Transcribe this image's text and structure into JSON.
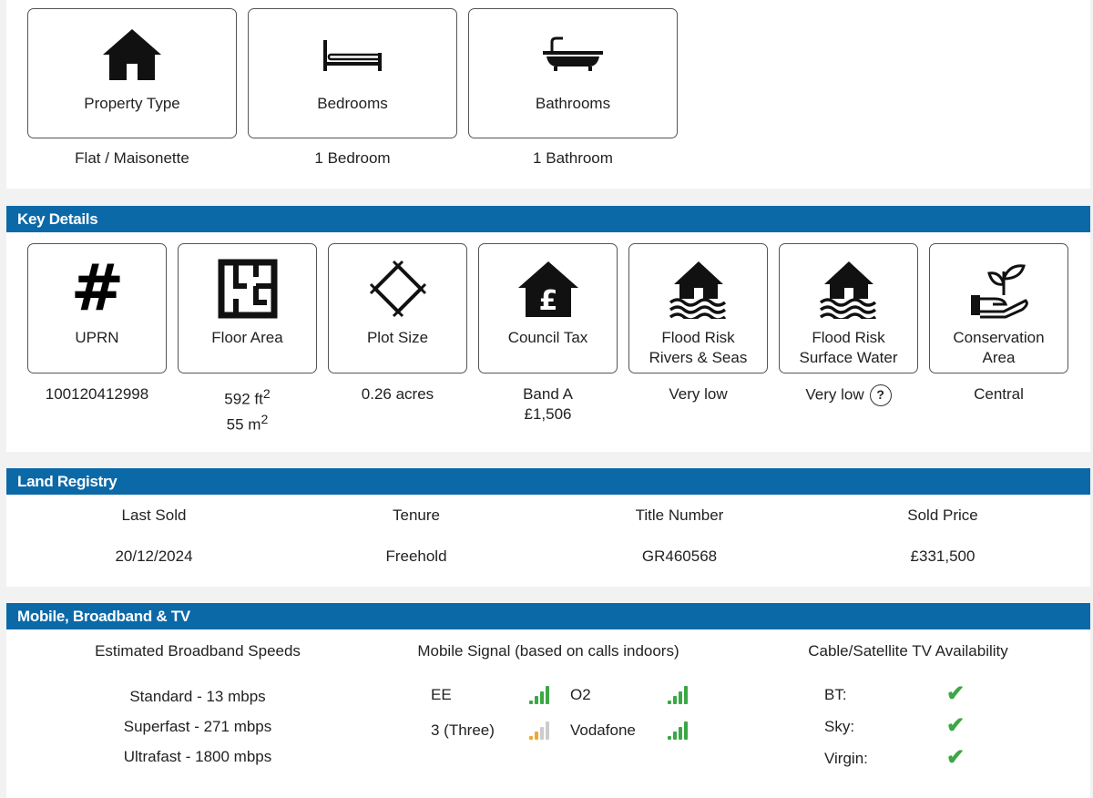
{
  "summary": [
    {
      "label": "Property Type",
      "value": "Flat / Maisonette",
      "icon": "house-icon"
    },
    {
      "label": "Bedrooms",
      "value": "1 Bedroom",
      "icon": "bed-icon"
    },
    {
      "label": "Bathrooms",
      "value": "1 Bathroom",
      "icon": "bath-icon"
    }
  ],
  "key_details": {
    "title": "Key Details",
    "items": [
      {
        "label1": "UPRN",
        "label2": "",
        "value1": "100120412998",
        "value2": "",
        "icon": "hash-icon"
      },
      {
        "label1": "Floor Area",
        "label2": "",
        "value1": "592 ft",
        "sup1": "2",
        "value2": "55 m",
        "sup2": "2",
        "icon": "floorplan-icon"
      },
      {
        "label1": "Plot Size",
        "label2": "",
        "value1": "0.26 acres",
        "value2": "",
        "icon": "plot-icon"
      },
      {
        "label1": "Council Tax",
        "label2": "",
        "value1": "Band A",
        "value2": "£1,506",
        "icon": "council-tax-icon"
      },
      {
        "label1": "Flood Risk",
        "label2": "Rivers & Seas",
        "value1": "Very low",
        "value2": "",
        "icon": "flood-icon"
      },
      {
        "label1": "Flood Risk",
        "label2": "Surface Water",
        "value1": "Very low",
        "value2": "",
        "icon": "flood-icon",
        "help": "?"
      },
      {
        "label1": "Conservation",
        "label2": "Area",
        "value1": "Central",
        "value2": "",
        "icon": "plant-hand-icon"
      }
    ]
  },
  "land_registry": {
    "title": "Land Registry",
    "columns": [
      {
        "label": "Last Sold",
        "value": "20/12/2024"
      },
      {
        "label": "Tenure",
        "value": "Freehold"
      },
      {
        "label": "Title Number",
        "value": "GR460568"
      },
      {
        "label": "Sold Price",
        "value": "£331,500"
      }
    ]
  },
  "mobile": {
    "title": "Mobile, Broadband & TV",
    "broadband": {
      "title": "Estimated Broadband Speeds",
      "speeds": [
        "Standard - 13 mbps",
        "Superfast - 271 mbps",
        "Ultrafast - 1800 mbps"
      ]
    },
    "signal": {
      "title": "Mobile Signal (based on calls indoors)",
      "networks": [
        {
          "name": "EE",
          "level": 4,
          "max": 4,
          "color": "#3aa845"
        },
        {
          "name": "O2",
          "level": 4,
          "max": 4,
          "color": "#3aa845"
        },
        {
          "name": "3 (Three)",
          "level": 2,
          "max": 4,
          "color": "#f0a830"
        },
        {
          "name": "Vodafone",
          "level": 4,
          "max": 4,
          "color": "#3aa845"
        }
      ]
    },
    "tv": {
      "title": "Cable/Satellite TV Availability",
      "providers": [
        {
          "name": "BT:",
          "available": true
        },
        {
          "name": "Sky:",
          "available": true
        },
        {
          "name": "Virgin:",
          "available": true
        }
      ]
    }
  }
}
